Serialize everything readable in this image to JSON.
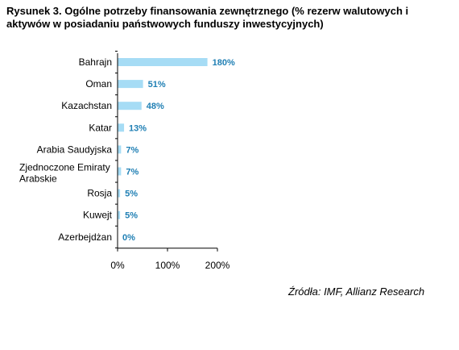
{
  "title": "Rysunek 3. Ogólne potrzeby finansowania zewnętrznego (% rezerw walutowych i aktywów w posiadaniu państwowych funduszy inwestycyjnych)",
  "source": "Źródła: IMF, Allianz Research",
  "chart_data": {
    "type": "bar",
    "orientation": "horizontal",
    "title": "Rysunek 3. Ogólne potrzeby finansowania zewnętrznego (% rezerw walutowych i aktywów w posiadaniu państwowych funduszy inwestycyjnych)",
    "categories": [
      [
        "Bahrajn"
      ],
      [
        "Oman"
      ],
      [
        "Kazachstan"
      ],
      [
        "Katar"
      ],
      [
        "Arabia Saudyjska"
      ],
      [
        "Zjednoczone Emiraty",
        "Arabskie"
      ],
      [
        "Rosja"
      ],
      [
        "Kuwejt"
      ],
      [
        "Azerbejdżan"
      ]
    ],
    "values": [
      180,
      51,
      48,
      13,
      7,
      7,
      5,
      5,
      0
    ],
    "value_labels": [
      "180%",
      "51%",
      "48%",
      "13%",
      "7%",
      "7%",
      "5%",
      "5%",
      "0%"
    ],
    "xlim": [
      0,
      200
    ],
    "xticks": [
      0,
      100,
      200
    ],
    "xtick_labels": [
      "0%",
      "100%",
      "200%"
    ],
    "grid": false,
    "legend": "none",
    "bar_color": "#a6dcf5",
    "value_label_color": "#1f7fb4"
  }
}
